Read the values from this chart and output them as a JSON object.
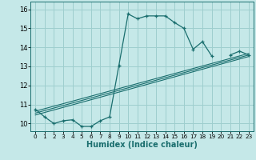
{
  "title": "",
  "xlabel": "Humidex (Indice chaleur)",
  "bg_color": "#c5e8e8",
  "grid_color": "#9ecece",
  "line_color": "#1a6e6e",
  "xlim": [
    -0.5,
    23.5
  ],
  "ylim": [
    9.6,
    16.4
  ],
  "xticks": [
    0,
    1,
    2,
    3,
    4,
    5,
    6,
    7,
    8,
    9,
    10,
    11,
    12,
    13,
    14,
    15,
    16,
    17,
    18,
    19,
    20,
    21,
    22,
    23
  ],
  "yticks": [
    10,
    11,
    12,
    13,
    14,
    15,
    16
  ],
  "main_x": [
    0,
    1,
    2,
    3,
    4,
    5,
    6,
    7,
    8,
    9,
    10,
    11,
    12,
    13,
    14,
    15,
    16,
    17,
    18,
    19,
    20,
    21,
    22,
    23
  ],
  "main_y": [
    10.75,
    10.35,
    10.0,
    10.15,
    10.2,
    9.85,
    9.85,
    10.15,
    10.35,
    13.05,
    15.75,
    15.5,
    15.65,
    15.65,
    15.65,
    15.3,
    15.0,
    13.9,
    14.3,
    13.55,
    null,
    13.6,
    13.8,
    13.6
  ],
  "line2_x": [
    0,
    23
  ],
  "line2_y": [
    10.55,
    13.6
  ],
  "line3_x": [
    0,
    23
  ],
  "line3_y": [
    10.65,
    13.68
  ],
  "line4_x": [
    0,
    23
  ],
  "line4_y": [
    10.45,
    13.52
  ]
}
